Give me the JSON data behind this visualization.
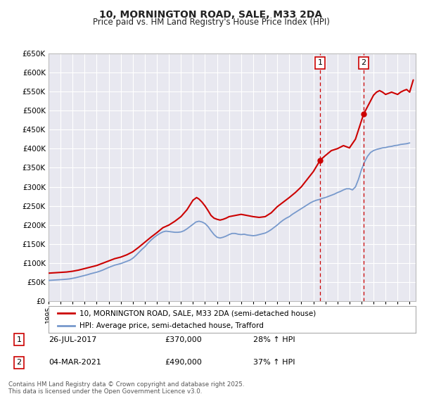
{
  "title": "10, MORNINGTON ROAD, SALE, M33 2DA",
  "subtitle": "Price paid vs. HM Land Registry's House Price Index (HPI)",
  "ylim": [
    0,
    650000
  ],
  "xlim_start": 1995.0,
  "xlim_end": 2025.5,
  "background_color": "#ffffff",
  "plot_bg_color": "#e8e8f0",
  "grid_color": "#ffffff",
  "line_color_red": "#cc0000",
  "line_color_blue": "#7799cc",
  "sale1_x": 2017.57,
  "sale1_y": 370000,
  "sale1_label": "1",
  "sale2_x": 2021.17,
  "sale2_y": 490000,
  "sale2_label": "2",
  "legend_line1": "10, MORNINGTON ROAD, SALE, M33 2DA (semi-detached house)",
  "legend_line2": "HPI: Average price, semi-detached house, Trafford",
  "annotation1_num": "1",
  "annotation1_date": "26-JUL-2017",
  "annotation1_price": "£370,000",
  "annotation1_hpi": "28% ↑ HPI",
  "annotation2_num": "2",
  "annotation2_date": "04-MAR-2021",
  "annotation2_price": "£490,000",
  "annotation2_hpi": "37% ↑ HPI",
  "footer": "Contains HM Land Registry data © Crown copyright and database right 2025.\nThis data is licensed under the Open Government Licence v3.0.",
  "hpi_data_x": [
    1995.0,
    1995.25,
    1995.5,
    1995.75,
    1996.0,
    1996.25,
    1996.5,
    1996.75,
    1997.0,
    1997.25,
    1997.5,
    1997.75,
    1998.0,
    1998.25,
    1998.5,
    1998.75,
    1999.0,
    1999.25,
    1999.5,
    1999.75,
    2000.0,
    2000.25,
    2000.5,
    2000.75,
    2001.0,
    2001.25,
    2001.5,
    2001.75,
    2002.0,
    2002.25,
    2002.5,
    2002.75,
    2003.0,
    2003.25,
    2003.5,
    2003.75,
    2004.0,
    2004.25,
    2004.5,
    2004.75,
    2005.0,
    2005.25,
    2005.5,
    2005.75,
    2006.0,
    2006.25,
    2006.5,
    2006.75,
    2007.0,
    2007.25,
    2007.5,
    2007.75,
    2008.0,
    2008.25,
    2008.5,
    2008.75,
    2009.0,
    2009.25,
    2009.5,
    2009.75,
    2010.0,
    2010.25,
    2010.5,
    2010.75,
    2011.0,
    2011.25,
    2011.5,
    2011.75,
    2012.0,
    2012.25,
    2012.5,
    2012.75,
    2013.0,
    2013.25,
    2013.5,
    2013.75,
    2014.0,
    2014.25,
    2014.5,
    2014.75,
    2015.0,
    2015.25,
    2015.5,
    2015.75,
    2016.0,
    2016.25,
    2016.5,
    2016.75,
    2017.0,
    2017.25,
    2017.5,
    2017.75,
    2018.0,
    2018.25,
    2018.5,
    2018.75,
    2019.0,
    2019.25,
    2019.5,
    2019.75,
    2020.0,
    2020.25,
    2020.5,
    2020.75,
    2021.0,
    2021.25,
    2021.5,
    2021.75,
    2022.0,
    2022.25,
    2022.5,
    2022.75,
    2023.0,
    2023.25,
    2023.5,
    2023.75,
    2024.0,
    2024.25,
    2024.5,
    2024.75,
    2025.0
  ],
  "hpi_data_y": [
    55000,
    55500,
    56000,
    56500,
    57000,
    57500,
    58200,
    59000,
    60500,
    62000,
    64000,
    66000,
    68000,
    70000,
    72500,
    74500,
    76500,
    79000,
    82000,
    85500,
    89000,
    92000,
    95000,
    97000,
    99000,
    102000,
    105000,
    108000,
    113000,
    120000,
    128000,
    136000,
    143000,
    152000,
    160000,
    167000,
    173000,
    178000,
    182000,
    184000,
    183000,
    182000,
    181000,
    181000,
    182000,
    185000,
    190000,
    196000,
    202000,
    208000,
    210000,
    208000,
    204000,
    196000,
    185000,
    175000,
    168000,
    166000,
    168000,
    171000,
    175000,
    178000,
    178000,
    176000,
    175000,
    176000,
    174000,
    173000,
    172000,
    173000,
    175000,
    177000,
    179000,
    183000,
    188000,
    194000,
    200000,
    207000,
    213000,
    218000,
    222000,
    228000,
    233000,
    238000,
    243000,
    248000,
    253000,
    258000,
    262000,
    265000,
    267000,
    270000,
    272000,
    275000,
    278000,
    281000,
    285000,
    288000,
    292000,
    295000,
    295000,
    292000,
    300000,
    320000,
    345000,
    365000,
    380000,
    390000,
    395000,
    398000,
    400000,
    402000,
    403000,
    405000,
    406000,
    408000,
    409000,
    411000,
    412000,
    413000,
    415000
  ],
  "property_data_x": [
    1995.0,
    1995.5,
    1996.0,
    1996.5,
    1997.0,
    1997.5,
    1998.0,
    1998.5,
    1999.0,
    1999.5,
    2000.0,
    2000.5,
    2001.0,
    2001.5,
    2002.0,
    2002.5,
    2003.0,
    2003.5,
    2004.0,
    2004.5,
    2005.0,
    2005.5,
    2006.0,
    2006.5,
    2007.0,
    2007.3,
    2007.5,
    2007.75,
    2008.0,
    2008.25,
    2008.5,
    2008.75,
    2009.0,
    2009.25,
    2009.5,
    2009.75,
    2010.0,
    2010.5,
    2011.0,
    2011.5,
    2012.0,
    2012.5,
    2013.0,
    2013.5,
    2014.0,
    2014.5,
    2015.0,
    2015.5,
    2016.0,
    2016.5,
    2017.0,
    2017.57,
    2018.0,
    2018.5,
    2019.0,
    2019.5,
    2020.0,
    2020.5,
    2021.17,
    2021.5,
    2022.0,
    2022.25,
    2022.5,
    2022.75,
    2023.0,
    2023.25,
    2023.5,
    2023.75,
    2024.0,
    2024.25,
    2024.5,
    2024.75,
    2025.0,
    2025.3
  ],
  "property_data_y": [
    74000,
    75000,
    76000,
    77000,
    79000,
    82000,
    86000,
    90000,
    94000,
    100000,
    106000,
    112000,
    116000,
    122000,
    130000,
    142000,
    155000,
    168000,
    180000,
    193000,
    200000,
    210000,
    222000,
    240000,
    265000,
    272000,
    268000,
    260000,
    250000,
    238000,
    225000,
    218000,
    215000,
    213000,
    215000,
    218000,
    222000,
    225000,
    228000,
    225000,
    222000,
    220000,
    222000,
    232000,
    248000,
    260000,
    272000,
    285000,
    300000,
    320000,
    340000,
    370000,
    382000,
    395000,
    400000,
    408000,
    402000,
    425000,
    490000,
    510000,
    540000,
    548000,
    552000,
    548000,
    542000,
    545000,
    548000,
    545000,
    542000,
    548000,
    552000,
    555000,
    548000,
    580000
  ]
}
